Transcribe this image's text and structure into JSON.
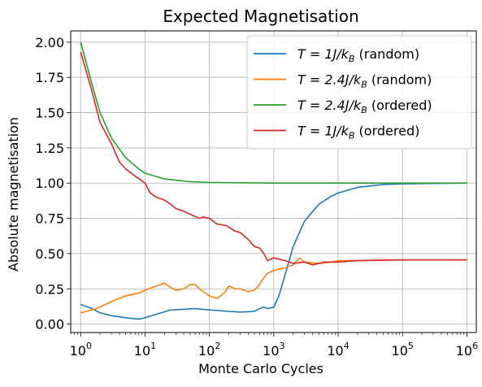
{
  "chart_data": {
    "type": "line",
    "title": "Expected Magnetisation",
    "xlabel": "Monte Carlo Cycles",
    "ylabel": "Absolute magnetisation",
    "xscale": "log",
    "xlim": [
      0.7,
      1400000
    ],
    "ylim": [
      -0.06,
      2.08
    ],
    "grid": true,
    "legend_position": "top-right",
    "x_ticks": [
      {
        "value": 1,
        "base": "10",
        "exp": "0"
      },
      {
        "value": 10,
        "base": "10",
        "exp": "1"
      },
      {
        "value": 100,
        "base": "10",
        "exp": "2"
      },
      {
        "value": 1000,
        "base": "10",
        "exp": "3"
      },
      {
        "value": 10000,
        "base": "10",
        "exp": "4"
      },
      {
        "value": 100000,
        "base": "10",
        "exp": "5"
      },
      {
        "value": 1000000,
        "base": "10",
        "exp": "6"
      }
    ],
    "y_ticks": [
      {
        "value": 0.0,
        "label": "0.00"
      },
      {
        "value": 0.25,
        "label": "0.25"
      },
      {
        "value": 0.5,
        "label": "0.50"
      },
      {
        "value": 0.75,
        "label": "0.75"
      },
      {
        "value": 1.0,
        "label": "1.00"
      },
      {
        "value": 1.25,
        "label": "1.25"
      },
      {
        "value": 1.5,
        "label": "1.50"
      },
      {
        "value": 1.75,
        "label": "1.75"
      },
      {
        "value": 2.0,
        "label": "2.00"
      }
    ],
    "series": [
      {
        "name": "T = 1J/kB (random)",
        "legend": {
          "lead": "T",
          "mid": " = 1J/k",
          "sub": "B",
          "tail": " (random)"
        },
        "color": "#1f77b4",
        "points": [
          [
            1,
            0.14
          ],
          [
            1.5,
            0.11
          ],
          [
            2,
            0.08
          ],
          [
            3,
            0.06
          ],
          [
            5,
            0.045
          ],
          [
            8,
            0.035
          ],
          [
            10,
            0.045
          ],
          [
            15,
            0.07
          ],
          [
            25,
            0.1
          ],
          [
            40,
            0.105
          ],
          [
            60,
            0.11
          ],
          [
            100,
            0.1
          ],
          [
            150,
            0.095
          ],
          [
            200,
            0.09
          ],
          [
            300,
            0.085
          ],
          [
            500,
            0.09
          ],
          [
            600,
            0.11
          ],
          [
            700,
            0.12
          ],
          [
            800,
            0.11
          ],
          [
            1000,
            0.12
          ],
          [
            1200,
            0.2
          ],
          [
            1500,
            0.35
          ],
          [
            2000,
            0.55
          ],
          [
            3000,
            0.73
          ],
          [
            5000,
            0.85
          ],
          [
            8000,
            0.91
          ],
          [
            10000,
            0.93
          ],
          [
            20000,
            0.97
          ],
          [
            50000,
            0.99
          ],
          [
            100000,
            0.995
          ],
          [
            1000000,
            1.0
          ]
        ]
      },
      {
        "name": "T = 2.4J/kB (random)",
        "legend": {
          "lead": "T",
          "mid": " = 2.4J/k",
          "sub": "B",
          "tail": " (random)"
        },
        "color": "#ff7f0e",
        "points": [
          [
            1,
            0.08
          ],
          [
            1.5,
            0.1
          ],
          [
            2,
            0.12
          ],
          [
            3,
            0.16
          ],
          [
            5,
            0.2
          ],
          [
            8,
            0.22
          ],
          [
            10,
            0.24
          ],
          [
            15,
            0.27
          ],
          [
            20,
            0.29
          ],
          [
            25,
            0.26
          ],
          [
            30,
            0.24
          ],
          [
            40,
            0.25
          ],
          [
            50,
            0.28
          ],
          [
            60,
            0.28
          ],
          [
            70,
            0.25
          ],
          [
            100,
            0.2
          ],
          [
            130,
            0.18
          ],
          [
            170,
            0.22
          ],
          [
            200,
            0.27
          ],
          [
            250,
            0.25
          ],
          [
            300,
            0.25
          ],
          [
            400,
            0.23
          ],
          [
            500,
            0.24
          ],
          [
            600,
            0.28
          ],
          [
            700,
            0.33
          ],
          [
            800,
            0.36
          ],
          [
            1000,
            0.38
          ],
          [
            1500,
            0.4
          ],
          [
            2000,
            0.42
          ],
          [
            2500,
            0.47
          ],
          [
            3000,
            0.44
          ],
          [
            5000,
            0.43
          ],
          [
            8000,
            0.44
          ],
          [
            10000,
            0.45
          ],
          [
            20000,
            0.45
          ],
          [
            50000,
            0.455
          ],
          [
            1000000,
            0.455
          ]
        ]
      },
      {
        "name": "T = 2.4J/kB (ordered)",
        "legend": {
          "lead": "T",
          "mid": " = 2.4J/k",
          "sub": "B",
          "tail": " (ordered)"
        },
        "color": "#2ca02c",
        "points": [
          [
            1,
            2.0
          ],
          [
            1.5,
            1.7
          ],
          [
            2,
            1.5
          ],
          [
            3,
            1.32
          ],
          [
            5,
            1.18
          ],
          [
            8,
            1.1
          ],
          [
            10,
            1.07
          ],
          [
            20,
            1.03
          ],
          [
            50,
            1.01
          ],
          [
            100,
            1.005
          ],
          [
            1000,
            1.0
          ],
          [
            1000000,
            1.0
          ]
        ]
      },
      {
        "name": "T = 1J/kB (ordered)",
        "legend": {
          "lead": "T",
          "mid": " = 1J/k",
          "sub": "B",
          "tail": " (ordered)"
        },
        "color": "#d62728",
        "points": [
          [
            1,
            1.93
          ],
          [
            1.5,
            1.65
          ],
          [
            2,
            1.43
          ],
          [
            3,
            1.28
          ],
          [
            4,
            1.15
          ],
          [
            5,
            1.1
          ],
          [
            7,
            1.05
          ],
          [
            10,
            1.0
          ],
          [
            12,
            0.93
          ],
          [
            15,
            0.9
          ],
          [
            20,
            0.88
          ],
          [
            25,
            0.85
          ],
          [
            30,
            0.82
          ],
          [
            40,
            0.8
          ],
          [
            50,
            0.78
          ],
          [
            70,
            0.75
          ],
          [
            80,
            0.76
          ],
          [
            100,
            0.75
          ],
          [
            130,
            0.71
          ],
          [
            180,
            0.7
          ],
          [
            250,
            0.66
          ],
          [
            300,
            0.65
          ],
          [
            400,
            0.6
          ],
          [
            500,
            0.55
          ],
          [
            600,
            0.54
          ],
          [
            700,
            0.5
          ],
          [
            800,
            0.45
          ],
          [
            1000,
            0.47
          ],
          [
            1500,
            0.45
          ],
          [
            2000,
            0.43
          ],
          [
            3000,
            0.44
          ],
          [
            4000,
            0.42
          ],
          [
            6000,
            0.44
          ],
          [
            10000,
            0.44
          ],
          [
            20000,
            0.45
          ],
          [
            100000,
            0.455
          ],
          [
            1000000,
            0.455
          ]
        ]
      }
    ]
  }
}
